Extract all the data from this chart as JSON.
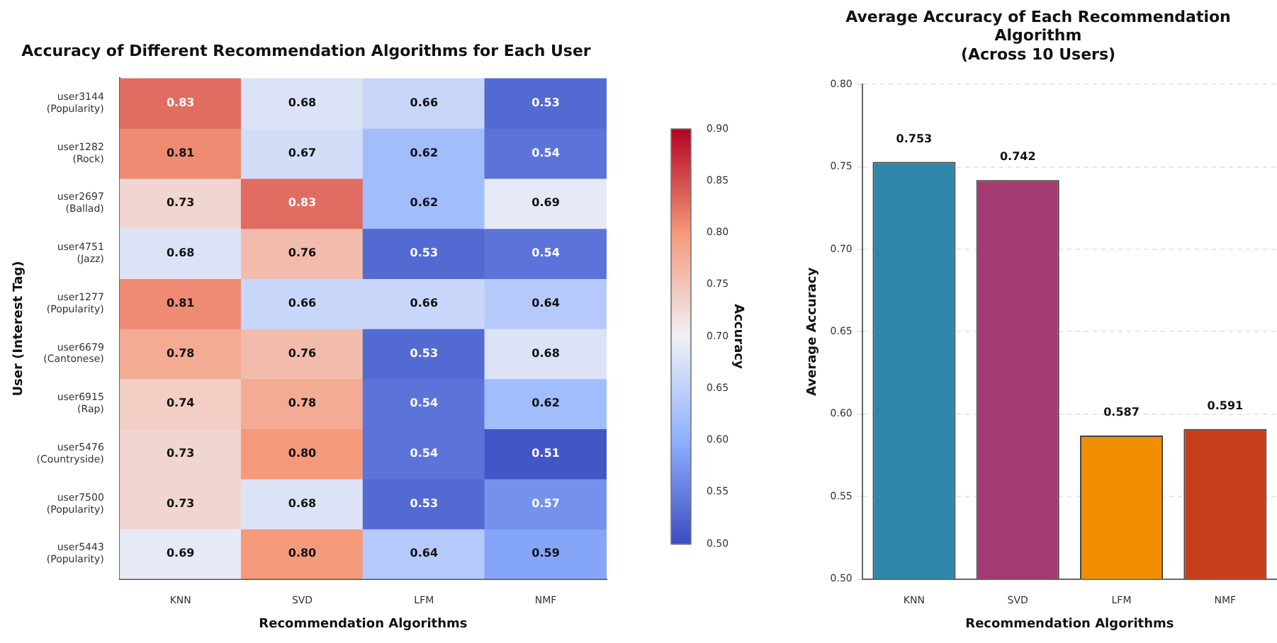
{
  "chart_data": [
    {
      "type": "heatmap",
      "title": "Accuracy of Different Recommendation Algorithms for Each User",
      "xlabel": "Recommendation Algorithms",
      "ylabel": "User (Interest Tag)",
      "clabel": "Accuracy",
      "categories": [
        "KNN",
        "SVD",
        "LFM",
        "NMF"
      ],
      "y_categories": [
        "user3144\n(Popularity)",
        "user1282\n(Rock)",
        "user2697\n(Ballad)",
        "user4751\n(Jazz)",
        "user1277\n(Popularity)",
        "user6679\n(Cantonese)",
        "user6915\n(Rap)",
        "user5476\n(Countryside)",
        "user7500\n(Popularity)",
        "user5443\n(Popularity)"
      ],
      "cells": [
        [
          0.83,
          0.68,
          0.66,
          0.53
        ],
        [
          0.81,
          0.67,
          0.62,
          0.54
        ],
        [
          0.73,
          0.83,
          0.62,
          0.69
        ],
        [
          0.68,
          0.76,
          0.53,
          0.54
        ],
        [
          0.81,
          0.66,
          0.66,
          0.64
        ],
        [
          0.78,
          0.76,
          0.53,
          0.68
        ],
        [
          0.74,
          0.78,
          0.54,
          0.62
        ],
        [
          0.73,
          0.8,
          0.54,
          0.51
        ],
        [
          0.73,
          0.68,
          0.53,
          0.57
        ],
        [
          0.69,
          0.8,
          0.64,
          0.59
        ]
      ],
      "cell_labels": [
        [
          "0.83",
          "0.68",
          "0.66",
          "0.53"
        ],
        [
          "0.81",
          "0.67",
          "0.62",
          "0.54"
        ],
        [
          "0.73",
          "0.83",
          "0.62",
          "0.69"
        ],
        [
          "0.68",
          "0.76",
          "0.53",
          "0.54"
        ],
        [
          "0.81",
          "0.66",
          "0.66",
          "0.64"
        ],
        [
          "0.78",
          "0.76",
          "0.53",
          "0.68"
        ],
        [
          "0.74",
          "0.78",
          "0.54",
          "0.62"
        ],
        [
          "0.73",
          "0.80",
          "0.54",
          "0.51"
        ],
        [
          "0.73",
          "0.68",
          "0.53",
          "0.57"
        ],
        [
          "0.69",
          "0.80",
          "0.64",
          "0.59"
        ]
      ],
      "clim": [
        0.5,
        0.9
      ],
      "cticks": [
        {
          "value": 0.5,
          "label": "0.50"
        },
        {
          "value": 0.55,
          "label": "0.55"
        },
        {
          "value": 0.6,
          "label": "0.60"
        },
        {
          "value": 0.65,
          "label": "0.65"
        },
        {
          "value": 0.7,
          "label": "0.70"
        },
        {
          "value": 0.75,
          "label": "0.75"
        },
        {
          "value": 0.8,
          "label": "0.80"
        },
        {
          "value": 0.85,
          "label": "0.85"
        },
        {
          "value": 0.9,
          "label": "0.90"
        }
      ]
    },
    {
      "type": "bar",
      "title": "Average Accuracy of Each Recommendation Algorithm\n(Across 10 Users)",
      "xlabel": "Recommendation Algorithms",
      "ylabel": "Average Accuracy",
      "categories": [
        "KNN",
        "SVD",
        "LFM",
        "NMF"
      ],
      "values": [
        0.753,
        0.742,
        0.587,
        0.591
      ],
      "colors": [
        "#2e86ab",
        "#a23b72",
        "#f18f01",
        "#c73e1d"
      ],
      "ylim": [
        0.5,
        0.8
      ],
      "yticks": [
        {
          "value": 0.5,
          "label": "0.50"
        },
        {
          "value": 0.55,
          "label": "0.55"
        },
        {
          "value": 0.6,
          "label": "0.60"
        },
        {
          "value": 0.65,
          "label": "0.65"
        },
        {
          "value": 0.7,
          "label": "0.70"
        },
        {
          "value": 0.75,
          "label": "0.75"
        },
        {
          "value": 0.8,
          "label": "0.80"
        }
      ],
      "grid": "y",
      "data_labels": true,
      "legend": false
    }
  ]
}
